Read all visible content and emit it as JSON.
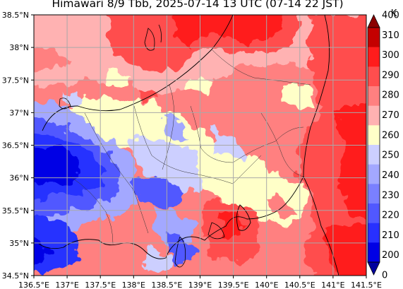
{
  "title": "Himawari 8/9 Tbb, 2025-07-14 13 UTC (07-14 22 JST)",
  "map": {
    "lon_range": [
      136.5,
      141.5
    ],
    "lat_range": [
      34.5,
      38.5
    ],
    "x_ticks": [
      "136.5°E",
      "137°E",
      "137.5°E",
      "138°E",
      "138.5°E",
      "139°E",
      "139.5°E",
      "140°E",
      "140.5°E",
      "141°E",
      "141.5°E"
    ],
    "y_ticks": [
      "38.5°N",
      "38°N",
      "37.5°N",
      "37°N",
      "36.5°N",
      "36°N",
      "35.5°N",
      "35°N",
      "34.5°N"
    ],
    "grid": true
  },
  "colorbar": {
    "unit": "K",
    "labels": [
      "400",
      "310",
      "300",
      "290",
      "280",
      "270",
      "260",
      "250",
      "240",
      "230",
      "220",
      "210",
      "200",
      "0"
    ],
    "colors": [
      "#8b0000",
      "#c40000",
      "#ff1c1c",
      "#ff4e4e",
      "#ff8080",
      "#ffb2b2",
      "#ffffc8",
      "#cccfff",
      "#a3a8ff",
      "#7a80ff",
      "#5158ff",
      "#2830ff",
      "#0000e5",
      "#00009e"
    ],
    "extend": "both"
  }
}
